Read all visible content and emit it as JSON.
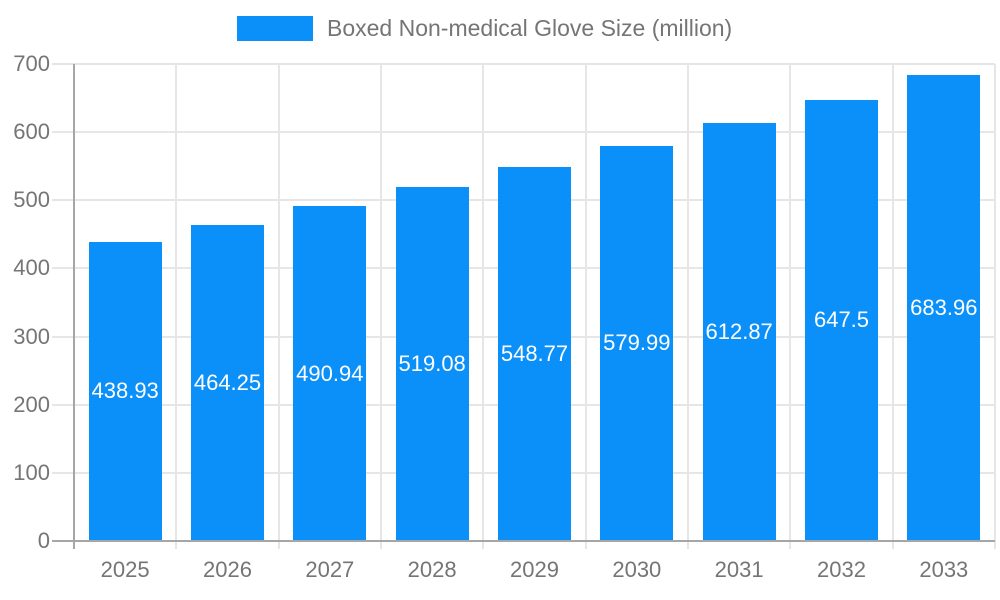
{
  "legend": {
    "label": "Boxed Non-medical Glove Size (million)"
  },
  "colors": {
    "bar": "#0A90F8",
    "grid": "#E6E6E6",
    "axis": "#A6A6A6",
    "text": "#757575",
    "value_label": "#FFFFFF",
    "background": "#FFFFFF"
  },
  "chart_data": {
    "type": "bar",
    "title": "Boxed Non-medical Glove Size (million)",
    "categories": [
      "2025",
      "2026",
      "2027",
      "2028",
      "2029",
      "2030",
      "2031",
      "2032",
      "2033"
    ],
    "values": [
      438.93,
      464.25,
      490.94,
      519.08,
      548.77,
      579.99,
      612.87,
      647.5,
      683.96
    ],
    "value_labels": [
      "438.93",
      "464.25",
      "490.94",
      "519.08",
      "548.77",
      "579.99",
      "612.87",
      "647.5",
      "683.96"
    ],
    "xlabel": "",
    "ylabel": "",
    "ylim": [
      0,
      700
    ],
    "ytick_step": 100,
    "ytick_labels": [
      "0",
      "100",
      "200",
      "300",
      "400",
      "500",
      "600",
      "700"
    ],
    "grid": true,
    "legend_position": "top",
    "value_label_position": "inside-center"
  }
}
